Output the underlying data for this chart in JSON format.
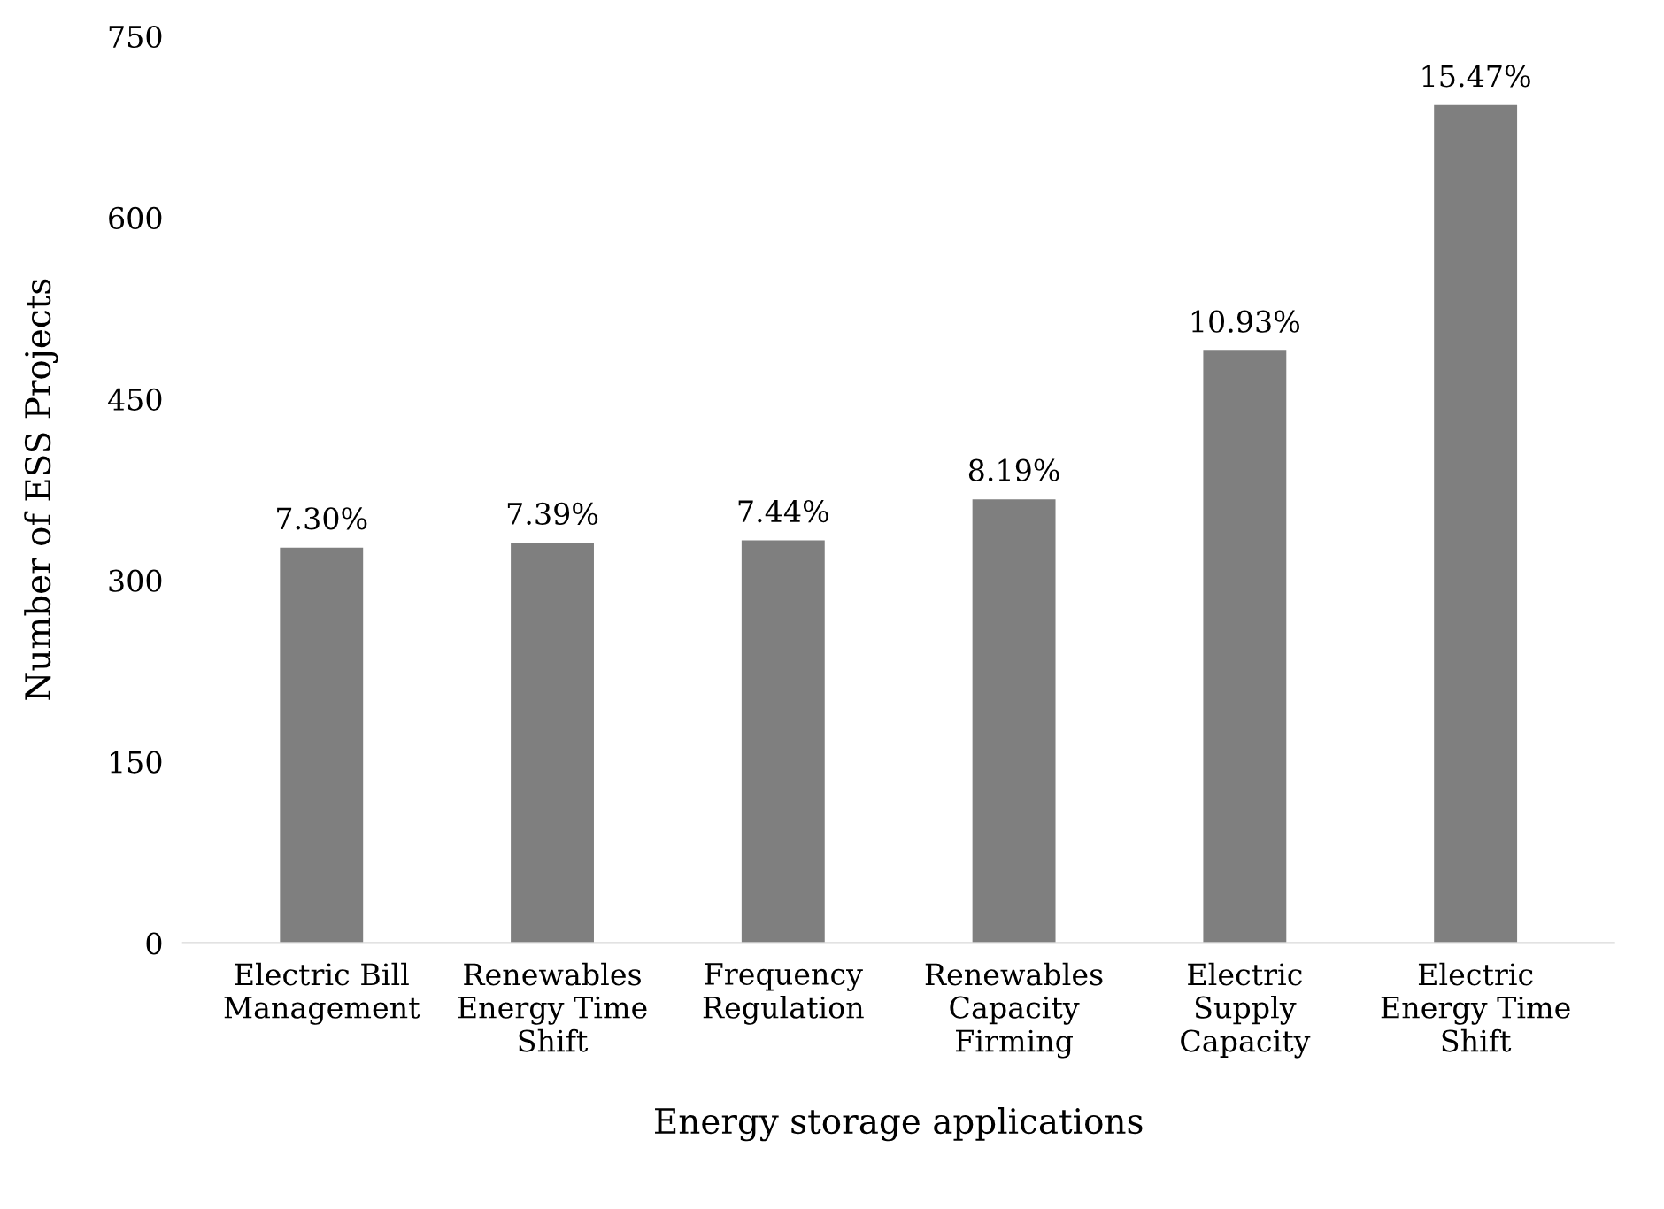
{
  "chart_data": {
    "type": "bar",
    "xlabel": "Energy storage applications",
    "ylabel": "Number of ESS Projects",
    "categories": [
      "Electric Bill\nManagement",
      "Renewables\nEnergy Time\nShift",
      "Frequency\nRegulation",
      "Renewables\nCapacity\nFirming",
      "Electric\nSupply\nCapacity",
      "Electric\nEnergy Time\nShift"
    ],
    "values": [
      327,
      331,
      333,
      367,
      490,
      693
    ],
    "annotations": [
      {
        "text": "7.30%",
        "x": "Electric Bill\nManagement",
        "y": 327
      },
      {
        "text": "7.39%",
        "x": "Renewables\nEnergy Time\nShift",
        "y": 331
      },
      {
        "text": "7.44%",
        "x": "Frequency\nRegulation",
        "y": 333
      },
      {
        "text": "8.19%",
        "x": "Renewables\nCapacity\nFirming",
        "y": 367
      },
      {
        "text": "10.93%",
        "x": "Electric\nSupply\nCapacity",
        "y": 490
      },
      {
        "text": "15.47%",
        "x": "Electric\nEnergy Time\nShift",
        "y": 693
      }
    ],
    "color": "#7f7f7f",
    "ylim": [
      0,
      750
    ],
    "yticks": [
      0,
      150,
      300,
      450,
      600,
      750
    ],
    "grid": false,
    "legend": false
  }
}
